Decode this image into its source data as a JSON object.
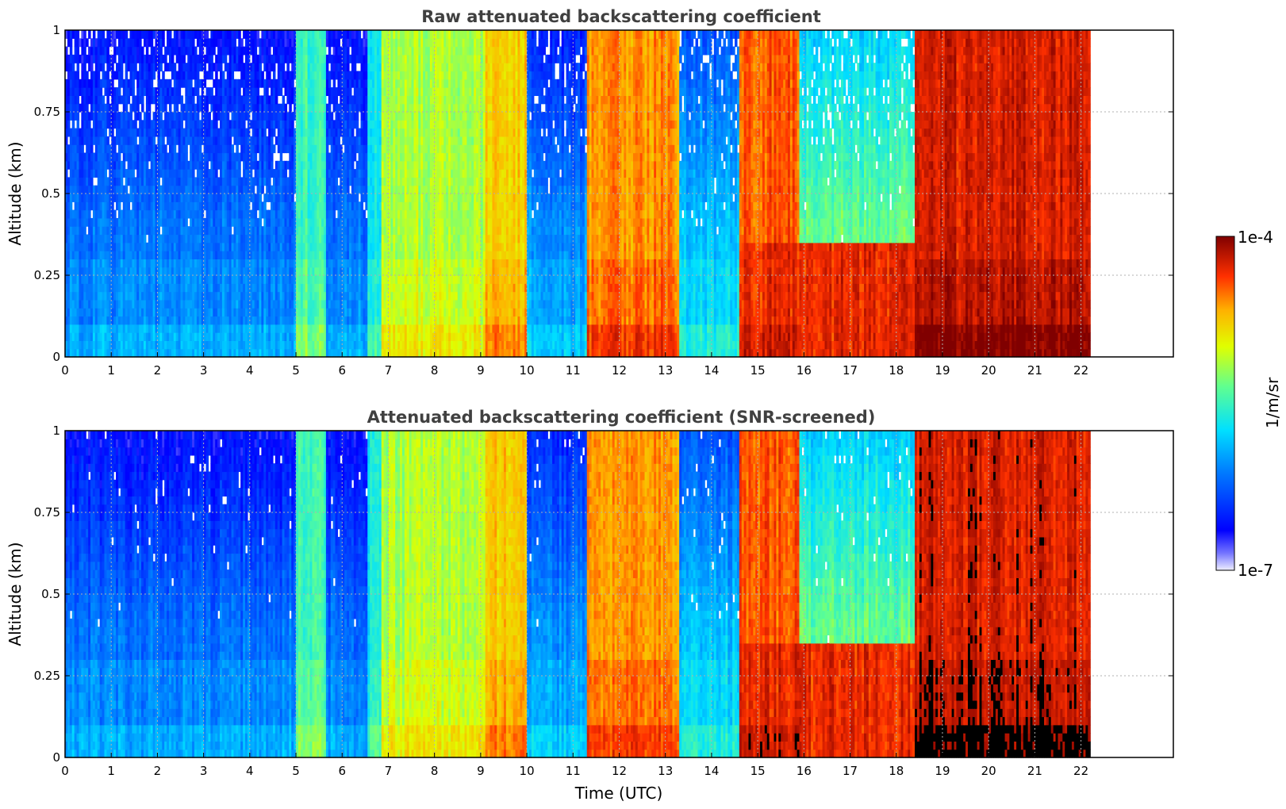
{
  "chart_data": {
    "type": "heatmap",
    "panels": [
      {
        "title": "Raw attenuated backscattering coefficient",
        "xlabel": "",
        "ylabel": "Altitude (km)",
        "xlim": [
          0,
          24
        ],
        "ylim": [
          0,
          1
        ],
        "data_end_hour": 22.2,
        "xticks": [
          "0",
          "1",
          "2",
          "3",
          "4",
          "5",
          "6",
          "7",
          "8",
          "9",
          "10",
          "11",
          "12",
          "13",
          "14",
          "15",
          "16",
          "17",
          "18",
          "19",
          "20",
          "21",
          "22"
        ],
        "yticks": [
          "0",
          "0.25",
          "0.5",
          "0.75",
          "1"
        ],
        "grid": true,
        "screened": false
      },
      {
        "title": "Attenuated backscattering coefficient (SNR-screened)",
        "xlabel": "Time (UTC)",
        "ylabel": "Altitude (km)",
        "xlim": [
          0,
          24
        ],
        "ylim": [
          0,
          1
        ],
        "data_end_hour": 22.2,
        "xticks": [
          "0",
          "1",
          "2",
          "3",
          "4",
          "5",
          "6",
          "7",
          "8",
          "9",
          "10",
          "11",
          "12",
          "13",
          "14",
          "15",
          "16",
          "17",
          "18",
          "19",
          "20",
          "21",
          "22"
        ],
        "yticks": [
          "0",
          "0.25",
          "0.5",
          "0.75",
          "1"
        ],
        "grid": true,
        "screened": true
      }
    ],
    "colorbar": {
      "label": "1/m/sr",
      "min_label": "1e-7",
      "max_label": "1e-4",
      "scale": "log",
      "colormap": "jet"
    },
    "segments": [
      {
        "start": 0.0,
        "end": 5.0,
        "bg_level": 0.28,
        "top_noise": true
      },
      {
        "start": 5.0,
        "end": 5.65,
        "bg_level": 0.5
      },
      {
        "start": 5.65,
        "end": 6.55,
        "bg_level": 0.28,
        "top_noise": true
      },
      {
        "start": 6.55,
        "end": 6.85,
        "bg_level": 0.45
      },
      {
        "start": 6.85,
        "end": 9.1,
        "bg_level": 0.62
      },
      {
        "start": 9.1,
        "end": 10.0,
        "bg_level": 0.74
      },
      {
        "start": 10.0,
        "end": 11.3,
        "bg_level": 0.32,
        "top_noise": true
      },
      {
        "start": 11.3,
        "end": 13.3,
        "bg_level": 0.8
      },
      {
        "start": 13.3,
        "end": 14.6,
        "bg_level": 0.38,
        "top_noise": true
      },
      {
        "start": 14.6,
        "end": 15.9,
        "bg_level": 0.85
      },
      {
        "start": 15.9,
        "end": 18.4,
        "bg_level": 0.55,
        "top_noise": true
      },
      {
        "start": 18.4,
        "end": 22.2,
        "bg_level": 0.92
      }
    ]
  }
}
